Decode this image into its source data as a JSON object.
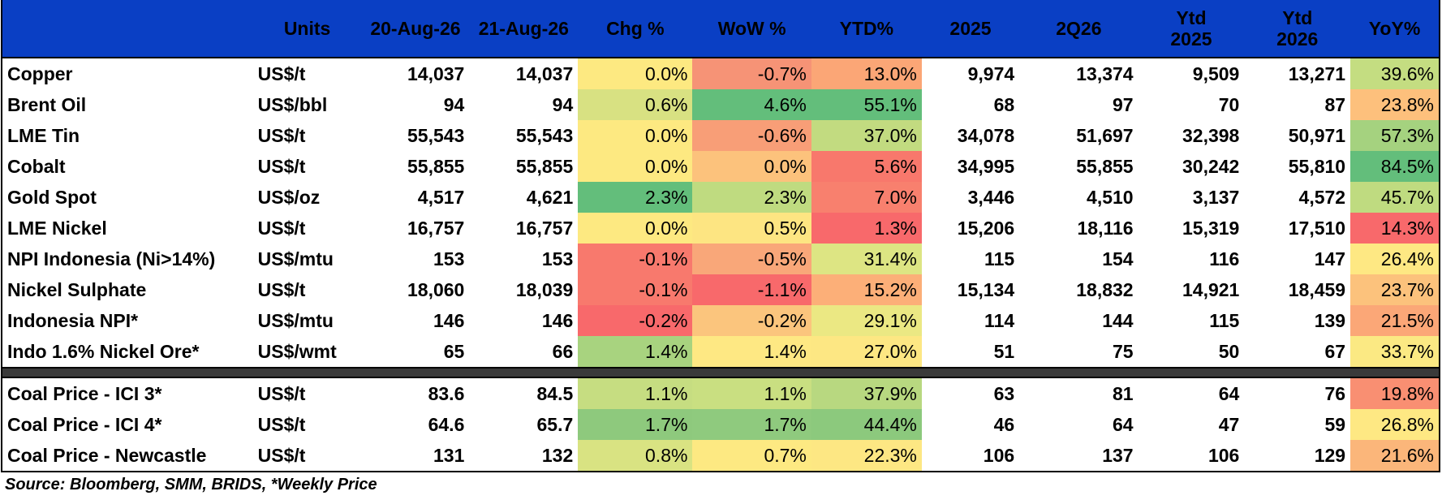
{
  "table": {
    "headers": [
      "",
      "Units",
      "20-Aug-26",
      "21-Aug-26",
      "Chg %",
      "WoW %",
      "YTD%",
      "2025",
      "2Q26",
      "Ytd\n2025",
      "Ytd\n2026",
      "YoY%"
    ],
    "group1": [
      {
        "name": "Copper",
        "unit": "US$/t",
        "d1": "14,037",
        "d2": "14,037",
        "chg": "0.0%",
        "wow": "-0.7%",
        "ytd": "13.0%",
        "y2025": "9,974",
        "q2": "13,374",
        "ytd25": "9,509",
        "ytd26": "13,271",
        "yoy": "39.6%",
        "colors": {
          "chg": "#fde981",
          "wow": "#f69376",
          "ytd": "#fba676",
          "yoy": "#c4dd81"
        }
      },
      {
        "name": "Brent Oil",
        "unit": "US$/bbl",
        "d1": "94",
        "d2": "94",
        "chg": "0.6%",
        "wow": "4.6%",
        "ytd": "55.1%",
        "y2025": "68",
        "q2": "97",
        "ytd25": "70",
        "ytd26": "87",
        "yoy": "23.8%",
        "colors": {
          "chg": "#d8e182",
          "wow": "#63be7b",
          "ytd": "#63be7b",
          "yoy": "#fdc07c"
        }
      },
      {
        "name": "LME Tin",
        "unit": "US$/t",
        "d1": "55,543",
        "d2": "55,543",
        "chg": "0.0%",
        "wow": "-0.6%",
        "ytd": "37.0%",
        "y2025": "34,078",
        "q2": "51,697",
        "ytd25": "32,398",
        "ytd26": "50,971",
        "yoy": "57.3%",
        "colors": {
          "chg": "#fde981",
          "wow": "#f89e77",
          "ytd": "#c2db80",
          "yoy": "#a5d27f"
        }
      },
      {
        "name": "Cobalt",
        "unit": "US$/t",
        "d1": "55,855",
        "d2": "55,855",
        "chg": "0.0%",
        "wow": "0.0%",
        "ytd": "5.6%",
        "y2025": "34,995",
        "q2": "55,855",
        "ytd25": "30,242",
        "ytd26": "55,810",
        "yoy": "84.5%",
        "colors": {
          "chg": "#fde981",
          "wow": "#fcc27c",
          "ytd": "#f8786c",
          "yoy": "#63be7b"
        }
      },
      {
        "name": "Gold Spot",
        "unit": "US$/oz",
        "d1": "4,517",
        "d2": "4,621",
        "chg": "2.3%",
        "wow": "2.3%",
        "ytd": "7.0%",
        "y2025": "3,446",
        "q2": "4,510",
        "ytd25": "3,137",
        "ytd26": "4,572",
        "yoy": "45.7%",
        "colors": {
          "chg": "#63be7b",
          "wow": "#bfdb80",
          "ytd": "#f8806e",
          "yoy": "#bfdb80"
        }
      },
      {
        "name": "LME Nickel",
        "unit": "US$/t",
        "d1": "16,757",
        "d2": "16,757",
        "chg": "0.0%",
        "wow": "0.5%",
        "ytd": "1.3%",
        "y2025": "15,206",
        "q2": "18,116",
        "ytd25": "15,319",
        "ytd26": "17,510",
        "yoy": "14.3%",
        "colors": {
          "chg": "#fde981",
          "wow": "#fde582",
          "ytd": "#f8696b",
          "yoy": "#f8696b"
        }
      },
      {
        "name": "NPI Indonesia (Ni>14%)",
        "unit": "US$/mtu",
        "d1": "153",
        "d2": "153",
        "chg": "-0.1%",
        "wow": "-0.5%",
        "ytd": "31.4%",
        "y2025": "115",
        "q2": "154",
        "ytd25": "116",
        "ytd26": "147",
        "yoy": "26.4%",
        "colors": {
          "chg": "#f8796d",
          "wow": "#f9a779",
          "ytd": "#dde583",
          "yoy": "#fee883"
        }
      },
      {
        "name": "Nickel Sulphate",
        "unit": "US$/t",
        "d1": "18,060",
        "d2": "18,039",
        "chg": "-0.1%",
        "wow": "-1.1%",
        "ytd": "15.2%",
        "y2025": "15,134",
        "q2": "18,832",
        "ytd25": "14,921",
        "ytd26": "18,459",
        "yoy": "23.7%",
        "colors": {
          "chg": "#f8796d",
          "wow": "#f8696b",
          "ytd": "#fcaf78",
          "yoy": "#fcc27c"
        }
      },
      {
        "name": "Indonesia NPI*",
        "unit": "US$/mtu",
        "d1": "146",
        "d2": "146",
        "chg": "-0.2%",
        "wow": "-0.2%",
        "ytd": "29.1%",
        "y2025": "114",
        "q2": "144",
        "ytd25": "115",
        "ytd26": "139",
        "yoy": "21.5%",
        "colors": {
          "chg": "#f8696b",
          "wow": "#fbc57d",
          "ytd": "#ebe883",
          "yoy": "#fba777"
        }
      },
      {
        "name": "Indo 1.6% Nickel Ore*",
        "unit": "US$/wmt",
        "d1": "65",
        "d2": "66",
        "chg": "1.4%",
        "wow": "1.4%",
        "ytd": "27.0%",
        "y2025": "51",
        "q2": "75",
        "ytd25": "50",
        "ytd26": "67",
        "yoy": "33.7%",
        "colors": {
          "chg": "#a8d37f",
          "wow": "#fee883",
          "ytd": "#fde783",
          "yoy": "#fbe983"
        }
      }
    ],
    "group2": [
      {
        "name": "Coal Price - ICI 3*",
        "unit": "US$/t",
        "d1": "83.6",
        "d2": "84.5",
        "chg": "1.1%",
        "wow": "1.1%",
        "ytd": "37.9%",
        "y2025": "63",
        "q2": "81",
        "ytd25": "64",
        "ytd26": "76",
        "yoy": "19.8%",
        "colors": {
          "chg": "#c6dd81",
          "wow": "#c9df81",
          "ytd": "#b8d880",
          "yoy": "#f98f72"
        }
      },
      {
        "name": "Coal Price - ICI 4*",
        "unit": "US$/t",
        "d1": "64.6",
        "d2": "65.7",
        "chg": "1.7%",
        "wow": "1.7%",
        "ytd": "44.4%",
        "y2025": "46",
        "q2": "64",
        "ytd25": "47",
        "ytd26": "59",
        "yoy": "26.8%",
        "colors": {
          "chg": "#8ec97d",
          "wow": "#8fca7e",
          "ytd": "#8cc97d",
          "yoy": "#fee883"
        }
      },
      {
        "name": "Coal Price - Newcastle",
        "unit": "US$/t",
        "d1": "131",
        "d2": "132",
        "chg": "0.8%",
        "wow": "0.7%",
        "ytd": "22.3%",
        "y2025": "106",
        "q2": "137",
        "ytd25": "106",
        "ytd26": "129",
        "yoy": "21.6%",
        "colors": {
          "chg": "#d9e382",
          "wow": "#fde982",
          "ytd": "#fde783",
          "yoy": "#fbb67a"
        }
      }
    ]
  },
  "source": "Source: Bloomberg, SMM, BRIDS, *Weekly Price"
}
